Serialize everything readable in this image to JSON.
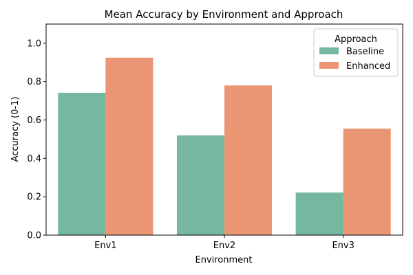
{
  "chart_data": {
    "type": "bar",
    "title": "Mean Accuracy by Environment and Approach",
    "xlabel": "Environment",
    "ylabel": "Accuracy (0-1)",
    "categories": [
      "Env1",
      "Env2",
      "Env3"
    ],
    "ylim": [
      0,
      1.1
    ],
    "yticks": [
      0.0,
      0.2,
      0.4,
      0.6,
      0.8,
      1.0
    ],
    "ytick_labels": [
      "0.0",
      "0.2",
      "0.4",
      "0.6",
      "0.8",
      "1.0"
    ],
    "grid": false,
    "legend": {
      "title": "Approach",
      "placement": "top-right"
    },
    "series": [
      {
        "name": "Baseline",
        "color": "#76b7a0",
        "values": [
          0.742,
          0.52,
          0.222
        ]
      },
      {
        "name": "Enhanced",
        "color": "#ea9674",
        "values": [
          0.925,
          0.78,
          0.555
        ]
      }
    ]
  }
}
